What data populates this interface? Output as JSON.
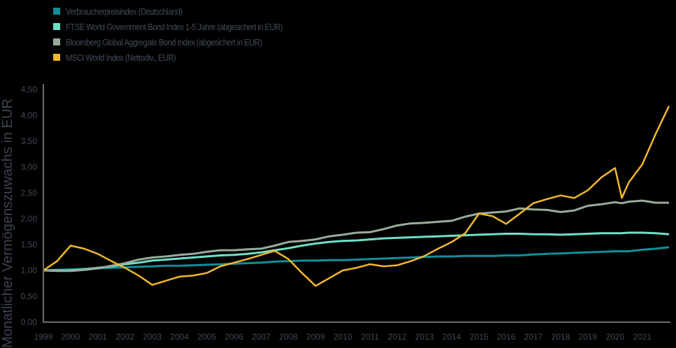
{
  "chart_data": {
    "type": "line",
    "title": "",
    "xlabel": "",
    "ylabel": "Monatlicher Vermögenszuwachs in EUR",
    "ylim": [
      0,
      4.5
    ],
    "xlim": [
      1999,
      2022.1
    ],
    "yticks": [
      "0,00",
      "0,50",
      "1,00",
      "1,50",
      "2,00",
      "2,50",
      "3,00",
      "3,50",
      "4,00",
      "4,50"
    ],
    "xticks": [
      "1999",
      "2000",
      "2001",
      "2002",
      "2003",
      "2004",
      "2005",
      "2006",
      "2007",
      "2008",
      "2009",
      "2010",
      "2011",
      "2012",
      "2013",
      "2014",
      "2015",
      "2016",
      "2017",
      "2018",
      "2019",
      "2020",
      "2021"
    ],
    "grid": false,
    "legend_position": "top-left",
    "x": [
      1999,
      1999.5,
      2000,
      2000.5,
      2001,
      2001.5,
      2002,
      2002.5,
      2003,
      2003.5,
      2004,
      2004.5,
      2005,
      2005.5,
      2006,
      2006.5,
      2007,
      2007.5,
      2008,
      2008.5,
      2009,
      2009.5,
      2010,
      2010.5,
      2011,
      2011.5,
      2012,
      2012.5,
      2013,
      2013.5,
      2014,
      2014.5,
      2015,
      2015.5,
      2016,
      2016.5,
      2017,
      2017.5,
      2018,
      2018.5,
      2019,
      2019.5,
      2020,
      2020.25,
      2020.5,
      2021,
      2021.5,
      2022.1
    ],
    "series": [
      {
        "name": "Verbraucherpreisindex (Deutschland)",
        "color": "#0f8e9a",
        "values": [
          1.0,
          1.01,
          1.02,
          1.03,
          1.04,
          1.05,
          1.06,
          1.07,
          1.08,
          1.09,
          1.09,
          1.1,
          1.11,
          1.12,
          1.13,
          1.14,
          1.15,
          1.17,
          1.18,
          1.19,
          1.19,
          1.2,
          1.2,
          1.21,
          1.22,
          1.23,
          1.24,
          1.25,
          1.26,
          1.27,
          1.27,
          1.28,
          1.28,
          1.28,
          1.29,
          1.29,
          1.31,
          1.32,
          1.33,
          1.34,
          1.35,
          1.36,
          1.37,
          1.37,
          1.37,
          1.4,
          1.42,
          1.45
        ]
      },
      {
        "name": "FTSE World Government Bond Index 1-5 Jahre (abgesichert in EUR)",
        "color": "#6ee0c8",
        "values": [
          1.0,
          1.0,
          1.0,
          1.02,
          1.05,
          1.08,
          1.12,
          1.15,
          1.19,
          1.21,
          1.23,
          1.25,
          1.27,
          1.29,
          1.3,
          1.32,
          1.35,
          1.39,
          1.43,
          1.48,
          1.52,
          1.55,
          1.57,
          1.58,
          1.6,
          1.62,
          1.63,
          1.64,
          1.65,
          1.66,
          1.67,
          1.68,
          1.69,
          1.7,
          1.71,
          1.71,
          1.7,
          1.7,
          1.69,
          1.7,
          1.71,
          1.72,
          1.72,
          1.72,
          1.73,
          1.73,
          1.72,
          1.7
        ]
      },
      {
        "name": "Bloomberg Global Aggregate Bond Index (abgesichert in EUR)",
        "color": "#9aab9c",
        "values": [
          1.0,
          0.99,
          0.99,
          1.01,
          1.04,
          1.09,
          1.14,
          1.21,
          1.25,
          1.27,
          1.3,
          1.32,
          1.36,
          1.39,
          1.39,
          1.41,
          1.42,
          1.48,
          1.55,
          1.57,
          1.6,
          1.66,
          1.69,
          1.73,
          1.74,
          1.8,
          1.87,
          1.91,
          1.92,
          1.94,
          1.96,
          2.04,
          2.1,
          2.12,
          2.14,
          2.2,
          2.18,
          2.17,
          2.13,
          2.16,
          2.25,
          2.28,
          2.32,
          2.3,
          2.33,
          2.35,
          2.31,
          2.31
        ]
      },
      {
        "name": "MSCI World Index (Nettodiv., EUR)",
        "color": "#f0b82a",
        "values": [
          1.0,
          1.18,
          1.48,
          1.42,
          1.32,
          1.18,
          1.05,
          0.9,
          0.72,
          0.8,
          0.88,
          0.9,
          0.95,
          1.08,
          1.15,
          1.22,
          1.3,
          1.38,
          1.22,
          0.95,
          0.7,
          0.85,
          1.0,
          1.05,
          1.12,
          1.08,
          1.1,
          1.18,
          1.28,
          1.42,
          1.55,
          1.72,
          2.1,
          2.05,
          1.9,
          2.1,
          2.3,
          2.38,
          2.45,
          2.4,
          2.55,
          2.8,
          2.98,
          2.4,
          2.7,
          3.05,
          3.65,
          4.18
        ]
      }
    ]
  },
  "legend": {
    "items": [
      {
        "label": "Verbraucherpreisindex (Deutschland)",
        "color": "#0f8e9a"
      },
      {
        "label": "FTSE World Government Bond Index 1-5 Jahre (abgesichert in EUR)",
        "color": "#6ee0c8"
      },
      {
        "label": "Bloomberg Global Aggregate Bond Index (abgesichert in EUR)",
        "color": "#9aab9c"
      },
      {
        "label": "MSCI World Index (Nettodiv., EUR)",
        "color": "#f0b82a"
      }
    ]
  },
  "axis": {
    "ytitle": "Monatlicher Vermögenszuwachs in EUR"
  }
}
